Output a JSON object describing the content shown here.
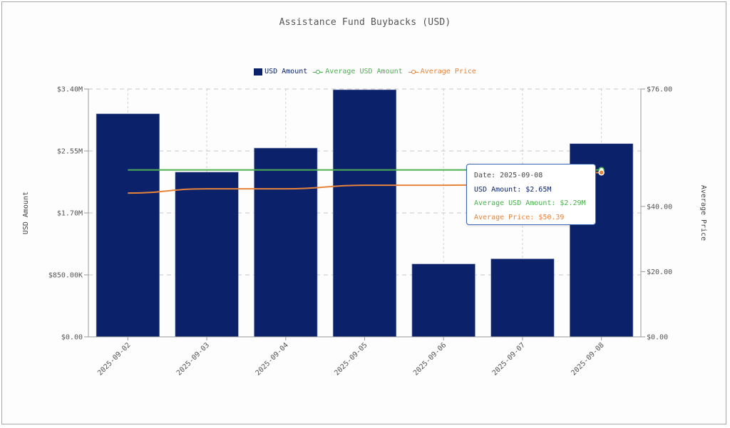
{
  "colors": {
    "bar": "#0b226b",
    "avg_usd": "#4caf50",
    "avg_price": "#e8833a",
    "grid": "#cccccc",
    "axis": "#888888",
    "tooltip_border": "#3a66b8",
    "tooltip_date": "#444444"
  },
  "chart_data": {
    "type": "bar",
    "title": "Assistance Fund Buybacks (USD)",
    "categories": [
      "2025-09-02",
      "2025-09-03",
      "2025-09-04",
      "2025-09-05",
      "2025-09-06",
      "2025-09-07",
      "2025-09-08"
    ],
    "series": [
      {
        "name": "USD Amount",
        "type": "bar",
        "axis": "left",
        "values": [
          3.06,
          2.26,
          2.59,
          3.39,
          1.0,
          1.07,
          2.65
        ],
        "unit": "M USD"
      },
      {
        "name": "Average USD Amount",
        "type": "line",
        "axis": "left",
        "values": [
          2.29,
          2.29,
          2.29,
          2.29,
          2.29,
          2.29,
          2.29
        ],
        "unit": "M USD"
      },
      {
        "name": "Average Price",
        "type": "line",
        "axis": "right",
        "values": [
          44.1,
          45.4,
          45.4,
          46.5,
          46.5,
          46.7,
          50.39
        ],
        "unit": "USD"
      }
    ],
    "ylabel": "USD Amount",
    "y2label": "Average Price",
    "ylim": [
      0,
      3.4
    ],
    "y2lim": [
      0,
      76
    ],
    "yticks": [
      {
        "value": 0,
        "label": "$0.00"
      },
      {
        "value": 0.85,
        "label": "$850.00K"
      },
      {
        "value": 1.7,
        "label": "$1.70M"
      },
      {
        "value": 2.55,
        "label": "$2.55M"
      },
      {
        "value": 3.4,
        "label": "$3.40M"
      }
    ],
    "y2ticks": [
      {
        "value": 0,
        "label": "$0.00"
      },
      {
        "value": 20,
        "label": "$20.00"
      },
      {
        "value": 40,
        "label": "$40.00"
      },
      {
        "value": 76,
        "label": "$76.00"
      }
    ],
    "grid": true,
    "legend_position": "top-center",
    "legend": [
      "USD Amount",
      "Average USD Amount",
      "Average Price"
    ]
  },
  "tooltip": {
    "date": "Date: 2025-09-08",
    "usd_amount": "USD Amount: $2.65M",
    "avg_usd_amount": "Average USD Amount: $2.29M",
    "avg_price": "Average Price: $50.39",
    "active_index": 6
  }
}
